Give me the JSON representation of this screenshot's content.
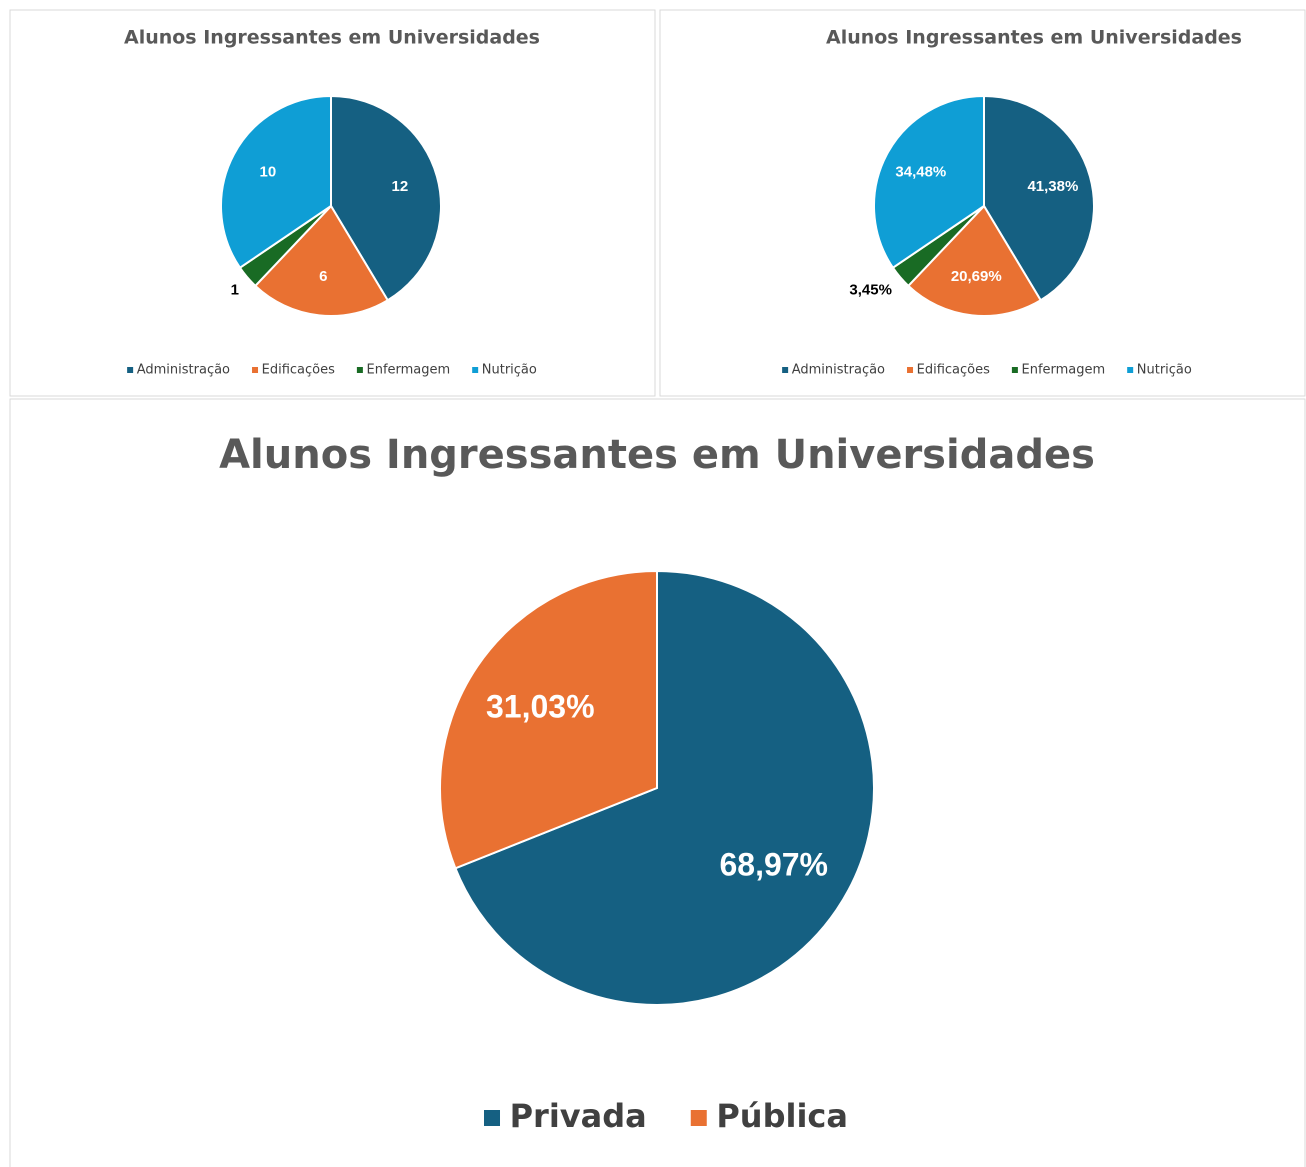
{
  "chart_data": [
    {
      "type": "pie",
      "title": "Alunos Ingressantes em Universidades",
      "categories": [
        "Administração",
        "Edificações",
        "Enfermagem",
        "Nutrição"
      ],
      "values": [
        12,
        6,
        1,
        10
      ],
      "colors": [
        "#156082",
        "#e97132",
        "#196b24",
        "#0f9ed5"
      ],
      "legend": "bottom"
    },
    {
      "type": "pie",
      "title": "Alunos Ingressantes em Universidades",
      "categories": [
        "Administração",
        "Edificações",
        "Enfermagem",
        "Nutrição"
      ],
      "values": [
        41.38,
        20.69,
        3.45,
        34.48
      ],
      "value_labels": [
        "41,38%",
        "20,69%",
        "3,45%",
        "34,48%"
      ],
      "colors": [
        "#156082",
        "#e97132",
        "#196b24",
        "#0f9ed5"
      ],
      "legend": "bottom"
    },
    {
      "type": "pie",
      "title": "Alunos Ingressantes em Universidades",
      "categories": [
        "Privada",
        "Pública"
      ],
      "values": [
        68.97,
        31.03
      ],
      "value_labels": [
        "68,97%",
        "31,03%"
      ],
      "colors": [
        "#156082",
        "#e97132"
      ],
      "legend": "bottom"
    }
  ]
}
